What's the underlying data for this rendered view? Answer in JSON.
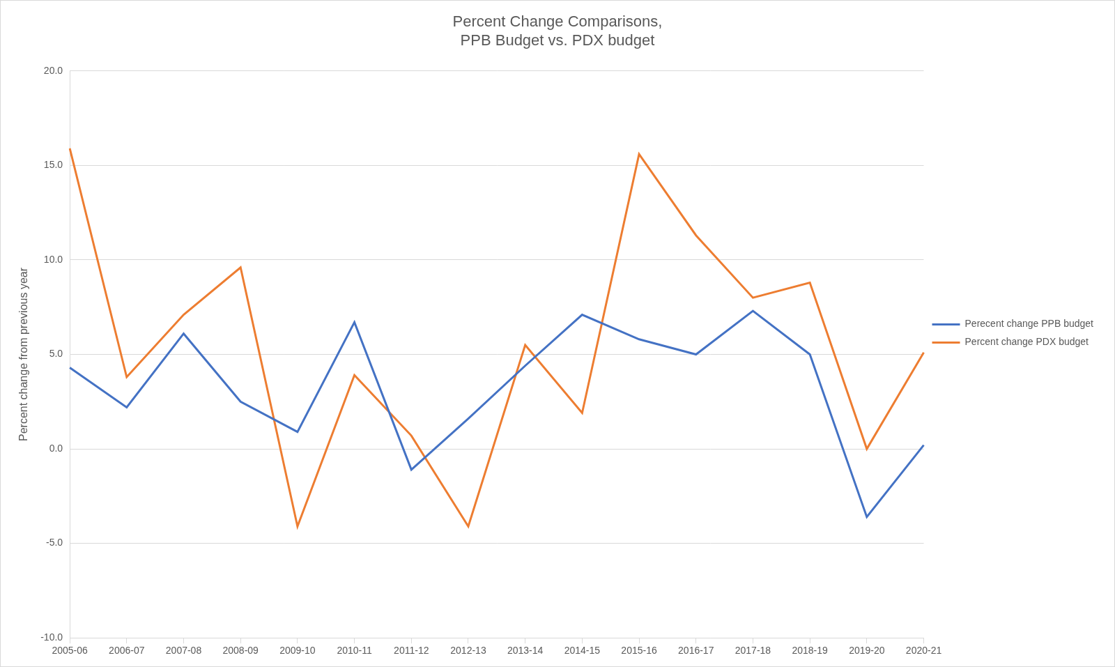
{
  "chart_data": {
    "type": "line",
    "title": [
      "Percent Change Comparisons,",
      "PPB Budget vs. PDX budget"
    ],
    "y_label": "Percent change from previous year",
    "categories": [
      "2005-06",
      "2006-07",
      "2007-08",
      "2008-09",
      "2009-10",
      "2010-11",
      "2011-12",
      "2012-13",
      "2013-14",
      "2014-15",
      "2015-16",
      "2016-17",
      "2017-18",
      "2018-19",
      "2019-20",
      "2020-21"
    ],
    "series": [
      {
        "name": "Perecent change PPB budget",
        "color": "#4472c4",
        "values": [
          4.3,
          2.2,
          6.1,
          2.5,
          0.9,
          6.7,
          -1.1,
          1.6,
          4.4,
          7.1,
          5.8,
          5.0,
          7.3,
          5.0,
          -3.6,
          0.2
        ]
      },
      {
        "name": "Percent change PDX budget",
        "color": "#ed7d31",
        "values": [
          15.9,
          3.8,
          7.1,
          9.6,
          -4.1,
          3.9,
          0.7,
          -4.1,
          5.5,
          1.9,
          15.6,
          11.3,
          8.0,
          8.8,
          0.0,
          5.1
        ]
      }
    ],
    "ylim": [
      -10,
      20
    ],
    "yticks": [
      {
        "value": -10,
        "label": "-10.0"
      },
      {
        "value": -5,
        "label": "-5.0"
      },
      {
        "value": 0,
        "label": "0.0"
      },
      {
        "value": 5,
        "label": "5.0"
      },
      {
        "value": 10,
        "label": "10.0"
      },
      {
        "value": 15,
        "label": "15.0"
      },
      {
        "value": 20,
        "label": "20.0"
      }
    ],
    "grid": true,
    "legend": "right",
    "marker": "none",
    "line_style": "solid"
  }
}
